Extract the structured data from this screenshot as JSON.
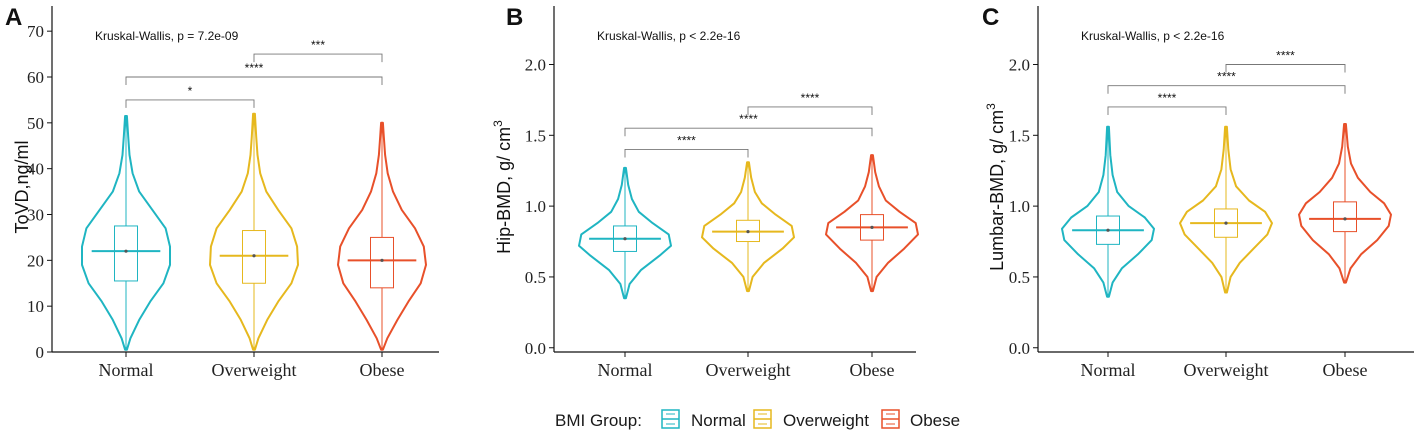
{
  "legend": {
    "title": "BMI Group:",
    "items": [
      {
        "label": "Normal",
        "color": "#1fb5c2"
      },
      {
        "label": "Overweight",
        "color": "#e6b81e"
      },
      {
        "label": "Obese",
        "color": "#e8502a"
      }
    ]
  },
  "chart_data": [
    {
      "panel": "A",
      "type": "violin",
      "ylabel": "ToVD,ng/ml",
      "ylim": [
        0,
        72
      ],
      "yticks": [
        0,
        10,
        20,
        30,
        40,
        50,
        60,
        70
      ],
      "ytick_labels": [
        "0",
        "10",
        "20",
        "30",
        "40",
        "50",
        "60",
        "70"
      ],
      "categories": [
        "Normal",
        "Overweight",
        "Obese"
      ],
      "test_label": "Kruskal-Wallis, p = 7.2e-09",
      "groups": [
        {
          "min": 0.5,
          "max": 51.5,
          "q1": 15.5,
          "median": 22,
          "q3": 27.5,
          "mean": 22,
          "profile": [
            [
              0.5,
              0.02
            ],
            [
              3,
              0.1
            ],
            [
              7,
              0.3
            ],
            [
              11,
              0.55
            ],
            [
              15,
              0.85
            ],
            [
              19,
              1.0
            ],
            [
              23,
              1.0
            ],
            [
              27,
              0.9
            ],
            [
              31,
              0.6
            ],
            [
              35,
              0.3
            ],
            [
              39,
              0.15
            ],
            [
              43,
              0.08
            ],
            [
              47,
              0.05
            ],
            [
              51.5,
              0.02
            ]
          ]
        },
        {
          "min": 0.5,
          "max": 52,
          "q1": 15,
          "median": 21,
          "q3": 26.5,
          "mean": 21,
          "profile": [
            [
              0.5,
              0.02
            ],
            [
              3,
              0.1
            ],
            [
              7,
              0.3
            ],
            [
              11,
              0.55
            ],
            [
              15,
              0.85
            ],
            [
              19,
              1.0
            ],
            [
              23,
              0.98
            ],
            [
              27,
              0.85
            ],
            [
              31,
              0.55
            ],
            [
              35,
              0.28
            ],
            [
              39,
              0.14
            ],
            [
              43,
              0.08
            ],
            [
              47,
              0.05
            ],
            [
              52,
              0.02
            ]
          ]
        },
        {
          "min": 0.5,
          "max": 50,
          "q1": 14,
          "median": 20,
          "q3": 25,
          "mean": 20,
          "profile": [
            [
              0.5,
              0.02
            ],
            [
              3,
              0.12
            ],
            [
              7,
              0.35
            ],
            [
              11,
              0.6
            ],
            [
              15,
              0.88
            ],
            [
              19,
              1.0
            ],
            [
              23,
              0.95
            ],
            [
              27,
              0.75
            ],
            [
              31,
              0.45
            ],
            [
              35,
              0.25
            ],
            [
              39,
              0.13
            ],
            [
              43,
              0.07
            ],
            [
              47,
              0.04
            ],
            [
              50,
              0.02
            ]
          ]
        }
      ],
      "comparisons": [
        {
          "from": 0,
          "to": 1,
          "y": 55,
          "label": "*"
        },
        {
          "from": 0,
          "to": 2,
          "y": 60,
          "label": "****"
        },
        {
          "from": 1,
          "to": 2,
          "y": 65,
          "label": "***"
        }
      ]
    },
    {
      "panel": "B",
      "type": "violin",
      "ylabel": "Hip-BMD, g/ cm",
      "ylabel_sup": "3",
      "ylim": [
        -0.03,
        2.3
      ],
      "yticks": [
        0,
        0.5,
        1,
        1.5,
        2
      ],
      "ytick_labels": [
        "0.0",
        "0.5",
        "1.0",
        "1.5",
        "2.0"
      ],
      "categories": [
        "Normal",
        "Overweight",
        "Obese"
      ],
      "test_label": "Kruskal-Wallis, p < 2.2e-16",
      "groups": [
        {
          "min": 0.35,
          "max": 1.27,
          "q1": 0.68,
          "median": 0.77,
          "q3": 0.86,
          "mean": 0.77,
          "profile": [
            [
              0.35,
              0.02
            ],
            [
              0.45,
              0.1
            ],
            [
              0.55,
              0.35
            ],
            [
              0.65,
              0.75
            ],
            [
              0.72,
              1.0
            ],
            [
              0.8,
              0.95
            ],
            [
              0.88,
              0.6
            ],
            [
              0.96,
              0.3
            ],
            [
              1.05,
              0.15
            ],
            [
              1.15,
              0.07
            ],
            [
              1.27,
              0.02
            ]
          ]
        },
        {
          "min": 0.4,
          "max": 1.31,
          "q1": 0.75,
          "median": 0.82,
          "q3": 0.9,
          "mean": 0.82,
          "profile": [
            [
              0.4,
              0.02
            ],
            [
              0.5,
              0.1
            ],
            [
              0.6,
              0.35
            ],
            [
              0.7,
              0.75
            ],
            [
              0.78,
              1.0
            ],
            [
              0.86,
              0.95
            ],
            [
              0.94,
              0.6
            ],
            [
              1.02,
              0.3
            ],
            [
              1.1,
              0.15
            ],
            [
              1.2,
              0.07
            ],
            [
              1.31,
              0.02
            ]
          ]
        },
        {
          "min": 0.4,
          "max": 1.36,
          "q1": 0.76,
          "median": 0.85,
          "q3": 0.94,
          "mean": 0.85,
          "profile": [
            [
              0.4,
              0.02
            ],
            [
              0.5,
              0.1
            ],
            [
              0.6,
              0.35
            ],
            [
              0.7,
              0.7
            ],
            [
              0.8,
              1.0
            ],
            [
              0.88,
              0.95
            ],
            [
              0.96,
              0.6
            ],
            [
              1.04,
              0.3
            ],
            [
              1.14,
              0.15
            ],
            [
              1.24,
              0.07
            ],
            [
              1.36,
              0.02
            ]
          ]
        }
      ],
      "comparisons": [
        {
          "from": 0,
          "to": 1,
          "y": 1.4,
          "label": "****"
        },
        {
          "from": 0,
          "to": 2,
          "y": 1.55,
          "label": "****"
        },
        {
          "from": 1,
          "to": 2,
          "y": 1.7,
          "label": "****"
        }
      ]
    },
    {
      "panel": "C",
      "type": "violin",
      "ylabel": "Lumbar-BMD, g/ cm",
      "ylabel_sup": "3",
      "ylim": [
        -0.03,
        2.3
      ],
      "yticks": [
        0,
        0.5,
        1,
        1.5,
        2
      ],
      "ytick_labels": [
        "0.0",
        "0.5",
        "1.0",
        "1.5",
        "2.0"
      ],
      "categories": [
        "Normal",
        "Overweight",
        "Obese"
      ],
      "test_label": "Kruskal-Wallis, p < 2.2e-16",
      "groups": [
        {
          "min": 0.36,
          "max": 1.56,
          "q1": 0.73,
          "median": 0.83,
          "q3": 0.93,
          "mean": 0.83,
          "profile": [
            [
              0.36,
              0.02
            ],
            [
              0.46,
              0.1
            ],
            [
              0.56,
              0.3
            ],
            [
              0.66,
              0.65
            ],
            [
              0.76,
              0.95
            ],
            [
              0.84,
              1.0
            ],
            [
              0.92,
              0.8
            ],
            [
              1.0,
              0.45
            ],
            [
              1.1,
              0.2
            ],
            [
              1.22,
              0.1
            ],
            [
              1.36,
              0.05
            ],
            [
              1.56,
              0.02
            ]
          ]
        },
        {
          "min": 0.39,
          "max": 1.56,
          "q1": 0.78,
          "median": 0.88,
          "q3": 0.98,
          "mean": 0.88,
          "profile": [
            [
              0.39,
              0.02
            ],
            [
              0.5,
              0.1
            ],
            [
              0.6,
              0.3
            ],
            [
              0.7,
              0.6
            ],
            [
              0.8,
              0.9
            ],
            [
              0.88,
              1.0
            ],
            [
              0.96,
              0.85
            ],
            [
              1.04,
              0.5
            ],
            [
              1.14,
              0.22
            ],
            [
              1.26,
              0.1
            ],
            [
              1.4,
              0.05
            ],
            [
              1.56,
              0.02
            ]
          ]
        },
        {
          "min": 0.46,
          "max": 1.58,
          "q1": 0.82,
          "median": 0.91,
          "q3": 1.03,
          "mean": 0.91,
          "profile": [
            [
              0.46,
              0.02
            ],
            [
              0.56,
              0.12
            ],
            [
              0.66,
              0.35
            ],
            [
              0.76,
              0.7
            ],
            [
              0.86,
              0.95
            ],
            [
              0.94,
              1.0
            ],
            [
              1.02,
              0.85
            ],
            [
              1.1,
              0.55
            ],
            [
              1.2,
              0.28
            ],
            [
              1.3,
              0.13
            ],
            [
              1.42,
              0.06
            ],
            [
              1.58,
              0.02
            ]
          ]
        }
      ],
      "comparisons": [
        {
          "from": 0,
          "to": 1,
          "y": 1.7,
          "label": "****"
        },
        {
          "from": 0,
          "to": 2,
          "y": 1.85,
          "label": "****"
        },
        {
          "from": 1,
          "to": 2,
          "y": 2.0,
          "label": "****"
        }
      ]
    }
  ]
}
